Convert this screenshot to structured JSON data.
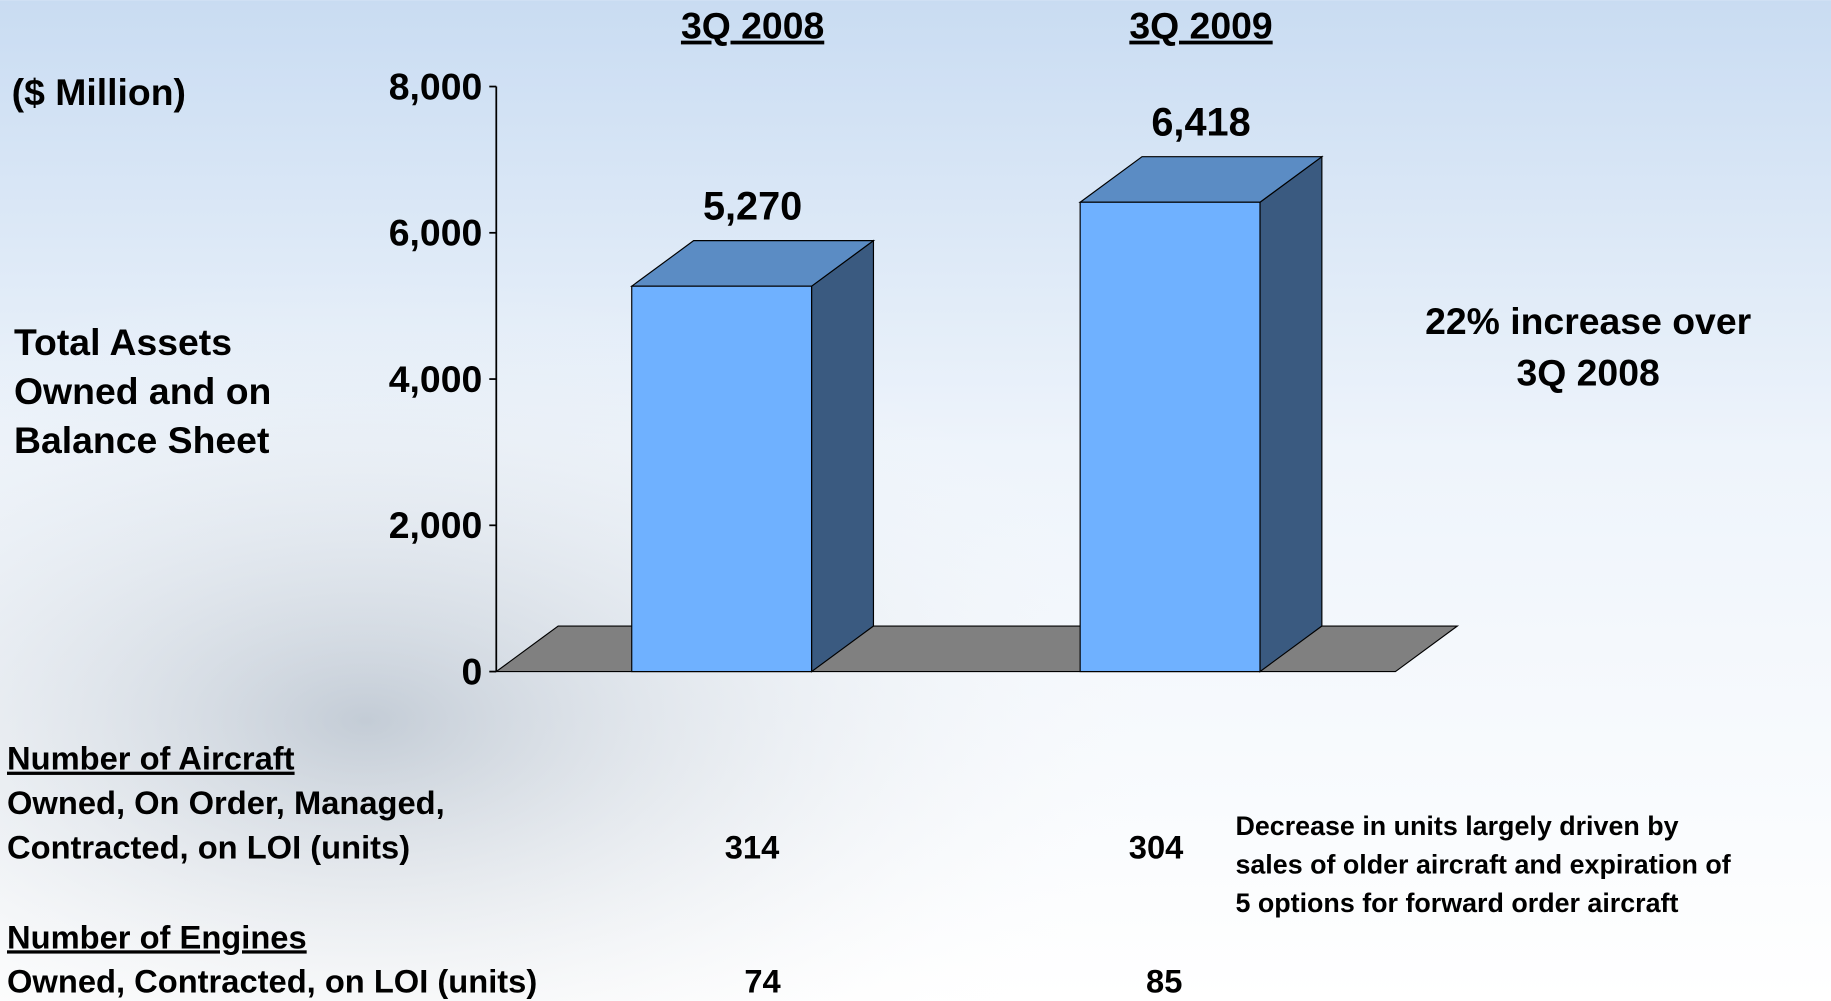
{
  "chart_data": {
    "type": "bar3d",
    "y_label": "($ Million)",
    "annotation_left": [
      "Total Assets",
      "Owned and on",
      "Balance Sheet"
    ],
    "annotation_right": [
      "22% increase over",
      "3Q 2008"
    ],
    "categories": [
      "3Q 2008",
      "3Q 2009"
    ],
    "values": [
      5270,
      6418
    ],
    "value_labels": [
      "5,270",
      "6,418"
    ],
    "color": "#6fb1ff",
    "ylim": [
      0,
      8000
    ],
    "yticks": [
      0,
      {
        "value": 2000,
        "label": "2,000"
      },
      {
        "value": 4000,
        "label": "4,000"
      },
      {
        "value": 6000,
        "label": "6,000"
      },
      {
        "value": 8000,
        "label": "8,000"
      }
    ]
  },
  "table": {
    "rows": [
      {
        "heading": "Number of Aircraft",
        "label_lines": [
          "Owned, On Order, Managed,",
          "Contracted, on LOI (units)"
        ],
        "values": [
          314,
          304
        ],
        "note_lines": [
          "Decrease in units largely driven by",
          "sales of older aircraft and expiration of",
          "5 options for forward order aircraft"
        ]
      },
      {
        "heading": "Number of Engines",
        "label_lines": [
          "Owned, Contracted, on LOI (units)"
        ],
        "values": [
          74,
          85
        ]
      }
    ]
  }
}
